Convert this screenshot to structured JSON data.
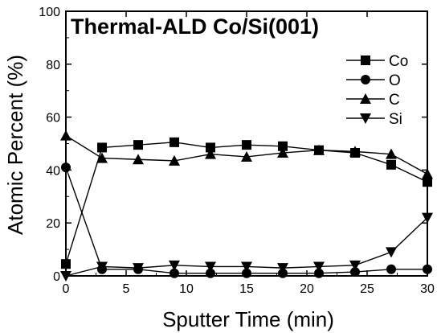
{
  "chart_data": {
    "type": "line",
    "title": "Thermal-ALD Co/Si(001)",
    "xlabel": "Sputter Time (min)",
    "ylabel": "Atomic Percent (%)",
    "xlim": [
      0,
      30
    ],
    "ylim": [
      0,
      100
    ],
    "xticks": [
      0,
      5,
      10,
      15,
      20,
      25,
      30
    ],
    "yticks": [
      0,
      20,
      40,
      60,
      80,
      100
    ],
    "grid": false,
    "legend_position": "top-right",
    "series": [
      {
        "name": "Co",
        "marker": "square",
        "x": [
          0,
          3,
          6,
          9,
          12,
          15,
          18,
          21,
          24,
          27,
          30
        ],
        "y": [
          4.5,
          48.5,
          49.5,
          50.5,
          48.5,
          49.5,
          49,
          47.5,
          46.5,
          42,
          35.5
        ]
      },
      {
        "name": "O",
        "marker": "circle",
        "x": [
          0,
          3,
          6,
          9,
          12,
          15,
          18,
          21,
          24,
          27,
          30
        ],
        "y": [
          41,
          2.5,
          2.5,
          1,
          1,
          1,
          1,
          1,
          1.5,
          2.5,
          2.5
        ]
      },
      {
        "name": "C",
        "marker": "triangle-up",
        "x": [
          0,
          3,
          6,
          9,
          12,
          15,
          18,
          21,
          24,
          27,
          30
        ],
        "y": [
          53,
          44.5,
          44,
          43.5,
          46,
          45,
          46.5,
          47.5,
          47,
          46,
          38.5
        ]
      },
      {
        "name": "Si",
        "marker": "triangle-down",
        "x": [
          0,
          3,
          6,
          9,
          12,
          15,
          18,
          21,
          24,
          27,
          30
        ],
        "y": [
          0,
          3.5,
          3,
          4,
          3.5,
          3.5,
          3,
          3.5,
          4,
          9,
          22
        ]
      }
    ]
  }
}
